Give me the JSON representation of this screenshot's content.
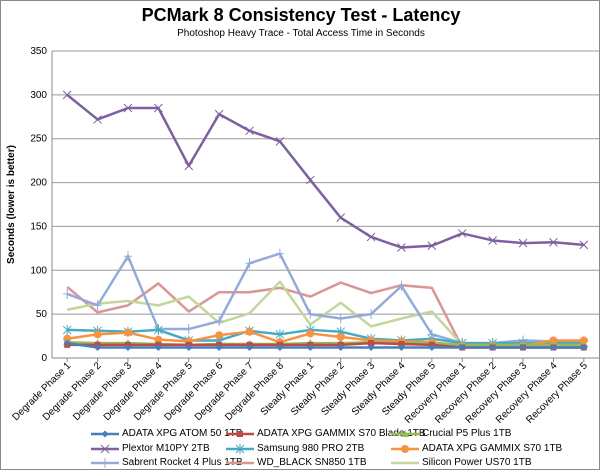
{
  "chart_data": {
    "type": "line",
    "title": "PCMark 8 Consistency Test - Latency",
    "subtitle": "Photoshop Heavy Trace - Total Access Time in Seconds",
    "xlabel": "",
    "ylabel": "Seconds (lower is better)",
    "ylim": [
      0,
      350
    ],
    "yticks": [
      0,
      50,
      100,
      150,
      200,
      250,
      300,
      350
    ],
    "grid": true,
    "legend_placement": "bottom",
    "categories": [
      "Degrade Phase 1",
      "Degrade Phase 2",
      "Degrade Phase 3",
      "Degrade Phase 4",
      "Degrade Phase 5",
      "Degrade Phase 6",
      "Degrade Phase 7",
      "Degrade Phase 8",
      "Steady Phase 1",
      "Steady Phase 2",
      "Steady Phase 3",
      "Steady Phase 4",
      "Steady Phase 5",
      "Recovery Phase 1",
      "Recovery Phase 2",
      "Recovery Phase 3",
      "Recovery Phase 4",
      "Recovery Phase 5"
    ],
    "series": [
      {
        "name": "ADATA XPG ATOM 50 1TB",
        "color": "#4a7ebb",
        "marker": "diamond",
        "values": [
          17,
          12,
          12,
          12,
          12,
          12,
          12,
          12,
          12,
          12,
          12,
          12,
          12,
          12,
          12,
          12,
          12,
          12
        ]
      },
      {
        "name": "ADATA XPG GAMMIX S70 Blade 1TB",
        "color": "#be4b48",
        "marker": "square",
        "values": [
          15,
          15,
          15,
          15,
          15,
          15,
          15,
          15,
          15,
          15,
          17,
          16,
          15,
          12,
          12,
          12,
          12,
          12
        ]
      },
      {
        "name": "Crucial P5 Plus 1TB",
        "color": "#98b954",
        "marker": "triangle",
        "values": [
          18,
          17,
          17,
          16,
          15,
          16,
          16,
          16,
          17,
          17,
          18,
          17,
          17,
          15,
          15,
          15,
          15,
          15
        ]
      },
      {
        "name": "Plextor M10PY 2TB",
        "color": "#7d60a0",
        "marker": "x",
        "values": [
          300,
          272,
          285,
          285,
          219,
          278,
          259,
          247,
          203,
          160,
          138,
          126,
          128,
          142,
          134,
          131,
          132,
          129
        ]
      },
      {
        "name": "Samsung 980 PRO 2TB",
        "color": "#46aac5",
        "marker": "star",
        "values": [
          32,
          31,
          30,
          32,
          20,
          20,
          31,
          27,
          32,
          30,
          22,
          20,
          22,
          17,
          17,
          17,
          17,
          17
        ]
      },
      {
        "name": "ADATA XPG GAMMIX S70 1TB",
        "color": "#f69240",
        "marker": "circle",
        "values": [
          22,
          27,
          29,
          21,
          19,
          26,
          30,
          18,
          28,
          24,
          20,
          19,
          18,
          14,
          14,
          14,
          20,
          20
        ]
      },
      {
        "name": "Sabrent Rocket 4 Plus 1TB",
        "color": "#94abd8",
        "marker": "plus",
        "values": [
          73,
          60,
          116,
          33,
          33,
          42,
          108,
          119,
          50,
          45,
          50,
          82,
          27,
          17,
          17,
          20,
          19,
          19
        ]
      },
      {
        "name": "WD_BLACK SN850 1TB",
        "color": "#d99694",
        "marker": "none",
        "values": [
          81,
          52,
          60,
          85,
          53,
          75,
          75,
          80,
          70,
          86,
          74,
          83,
          80,
          12,
          12,
          12,
          12,
          12
        ]
      },
      {
        "name": "Silicon Power US70 1TB",
        "color": "#c3d69b",
        "marker": "none",
        "values": [
          55,
          62,
          65,
          60,
          70,
          40,
          51,
          87,
          38,
          63,
          36,
          45,
          53,
          15,
          15,
          15,
          15,
          15
        ]
      }
    ]
  }
}
